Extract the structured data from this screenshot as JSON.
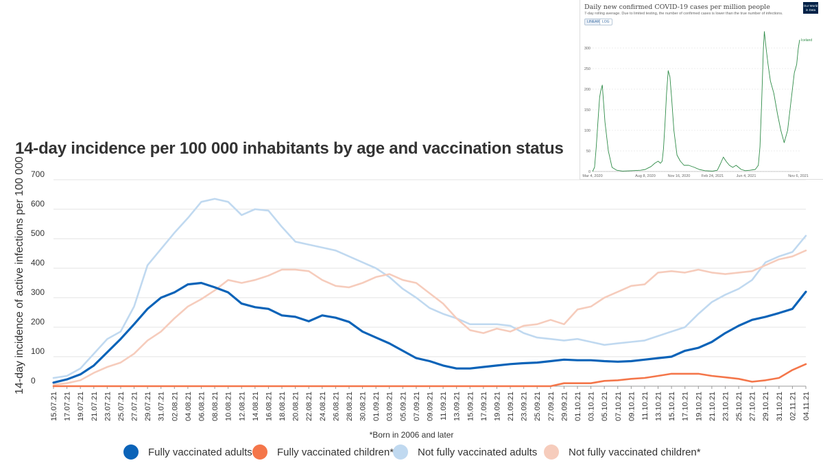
{
  "chart_data": [
    {
      "type": "line",
      "title": "14-day incidence per 100 000 inhabitants by age and vaccination status",
      "ylabel": "14-day incidence of active infections per 100 000",
      "xlabel": "",
      "ylim": [
        0,
        700
      ],
      "yticks": [
        0,
        100,
        200,
        300,
        400,
        500,
        600,
        700
      ],
      "grid": "horizontal",
      "legend_position": "bottom",
      "footnote": "*Born in 2006 and later",
      "x": [
        "15.07.21",
        "17.07.21",
        "19.07.21",
        "21.07.21",
        "23.07.21",
        "25.07.21",
        "27.07.21",
        "29.07.21",
        "31.07.21",
        "02.08.21",
        "04.08.21",
        "06.08.21",
        "08.08.21",
        "10.08.21",
        "12.08.21",
        "14.08.21",
        "16.08.21",
        "18.08.21",
        "20.08.21",
        "22.08.21",
        "24.08.21",
        "26.08.21",
        "28.08.21",
        "30.08.21",
        "01.09.21",
        "03.09.21",
        "05.09.21",
        "07.09.21",
        "09.09.21",
        "11.09.21",
        "13.09.21",
        "15.09.21",
        "17.09.21",
        "19.09.21",
        "21.09.21",
        "23.09.21",
        "25.09.21",
        "27.09.21",
        "29.09.21",
        "01.10.21",
        "03.10.21",
        "05.10.21",
        "07.10.21",
        "09.10.21",
        "11.10.21",
        "13.10.21",
        "15.10.21",
        "17.10.21",
        "19.10.21",
        "21.10.21",
        "23.10.21",
        "25.10.21",
        "27.10.21",
        "29.10.21",
        "31.10.21",
        "02.11.21",
        "04.11.21"
      ],
      "series": [
        {
          "name": "Fully vaccinated adults",
          "color": "#0b63b8",
          "values": [
            12,
            23,
            40,
            70,
            115,
            160,
            210,
            262,
            300,
            318,
            345,
            350,
            335,
            318,
            280,
            268,
            262,
            240,
            235,
            220,
            240,
            232,
            218,
            185,
            165,
            145,
            120,
            95,
            85,
            70,
            60,
            60,
            65,
            70,
            75,
            78,
            80,
            85,
            90,
            88,
            88,
            85,
            83,
            85,
            90,
            95,
            100,
            120,
            130,
            150,
            180,
            205,
            225,
            235,
            248,
            262,
            320
          ]
        },
        {
          "name": "Fully vaccinated children*",
          "color": "#f4764a",
          "values": [
            0,
            0,
            0,
            0,
            0,
            0,
            0,
            0,
            0,
            0,
            0,
            0,
            0,
            0,
            0,
            0,
            0,
            0,
            0,
            0,
            0,
            0,
            0,
            0,
            0,
            0,
            0,
            0,
            0,
            0,
            0,
            0,
            0,
            0,
            0,
            0,
            0,
            0,
            10,
            10,
            10,
            18,
            20,
            25,
            28,
            35,
            42,
            42,
            42,
            35,
            30,
            25,
            15,
            20,
            28,
            55,
            75
          ]
        },
        {
          "name": "Not fully vaccinated adults",
          "color": "#c0d9f0",
          "values": [
            28,
            35,
            60,
            110,
            160,
            185,
            270,
            410,
            465,
            520,
            570,
            625,
            635,
            625,
            580,
            600,
            595,
            540,
            490,
            480,
            470,
            460,
            440,
            420,
            400,
            370,
            330,
            300,
            265,
            245,
            230,
            210,
            210,
            210,
            205,
            180,
            165,
            160,
            155,
            160,
            150,
            140,
            145,
            150,
            155,
            170,
            185,
            200,
            245,
            285,
            310,
            330,
            360,
            420,
            440,
            455,
            510
          ]
        },
        {
          "name": "Not fully vaccinated children*",
          "color": "#f6ccbc",
          "values": [
            5,
            10,
            20,
            45,
            65,
            80,
            110,
            155,
            185,
            230,
            270,
            295,
            325,
            360,
            350,
            360,
            375,
            395,
            395,
            390,
            360,
            340,
            335,
            350,
            370,
            380,
            360,
            350,
            315,
            280,
            230,
            190,
            180,
            195,
            185,
            205,
            210,
            225,
            210,
            260,
            270,
            300,
            320,
            340,
            345,
            385,
            390,
            385,
            395,
            385,
            380,
            385,
            390,
            410,
            430,
            440,
            460
          ]
        }
      ]
    },
    {
      "type": "line",
      "title": "Daily new confirmed COVID-19 cases per million people",
      "subtitle": "7-day rolling average. Due to limited testing, the number of confirmed cases is lower than the true number of infections.",
      "ylim": [
        0,
        350
      ],
      "yticks": [
        0,
        50,
        100,
        150,
        200,
        250,
        300
      ],
      "xtick_labels": [
        "Mar 4, 2020",
        "Aug 8, 2020",
        "Nov 16, 2020",
        "Feb 24, 2021",
        "Jun 4, 2021",
        "Nov 6, 2021"
      ],
      "scale_buttons": [
        "LINEAR",
        "LOG"
      ],
      "logo": "Our World in Data",
      "series": [
        {
          "name": "Iceland",
          "color": "#2e8b47",
          "dates": [
            "2020-03-04",
            "2020-03-10",
            "2020-03-15",
            "2020-03-20",
            "2020-03-25",
            "2020-03-28",
            "2020-04-02",
            "2020-04-10",
            "2020-04-20",
            "2020-05-01",
            "2020-05-15",
            "2020-06-01",
            "2020-07-01",
            "2020-07-25",
            "2020-08-08",
            "2020-08-15",
            "2020-08-25",
            "2020-09-05",
            "2020-09-15",
            "2020-09-22",
            "2020-09-27",
            "2020-10-01",
            "2020-10-05",
            "2020-10-10",
            "2020-10-15",
            "2020-10-20",
            "2020-10-25",
            "2020-11-01",
            "2020-11-10",
            "2020-11-20",
            "2020-12-01",
            "2020-12-15",
            "2021-01-01",
            "2021-01-15",
            "2021-02-01",
            "2021-02-24",
            "2021-03-10",
            "2021-03-20",
            "2021-03-28",
            "2021-04-05",
            "2021-04-15",
            "2021-04-25",
            "2021-05-05",
            "2021-05-20",
            "2021-06-01",
            "2021-06-15",
            "2021-07-01",
            "2021-07-10",
            "2021-07-15",
            "2021-07-20",
            "2021-07-25",
            "2021-07-28",
            "2021-08-02",
            "2021-08-08",
            "2021-08-15",
            "2021-08-25",
            "2021-09-05",
            "2021-09-15",
            "2021-09-25",
            "2021-10-05",
            "2021-10-15",
            "2021-10-25",
            "2021-11-01",
            "2021-11-06",
            "2021-11-10"
          ],
          "values": [
            0,
            10,
            60,
            120,
            180,
            195,
            210,
            120,
            50,
            10,
            3,
            1,
            2,
            3,
            5,
            8,
            12,
            20,
            25,
            20,
            25,
            55,
            110,
            190,
            245,
            230,
            180,
            100,
            40,
            25,
            15,
            15,
            10,
            5,
            2,
            1,
            3,
            20,
            35,
            25,
            15,
            10,
            15,
            5,
            2,
            3,
            5,
            15,
            60,
            170,
            300,
            340,
            300,
            260,
            220,
            190,
            140,
            100,
            70,
            100,
            170,
            240,
            260,
            300,
            320
          ]
        }
      ]
    }
  ],
  "legend": [
    {
      "label": "Fully vaccinated adults",
      "color": "#0b63b8"
    },
    {
      "label": "Fully vaccinated children*",
      "color": "#f4764a"
    },
    {
      "label": "Not fully vaccinated adults",
      "color": "#c0d9f0"
    },
    {
      "label": "Not fully vaccinated children*",
      "color": "#f6ccbc"
    }
  ],
  "inset_ui": {
    "linear_label": "LINEAR",
    "log_label": "LOG",
    "logo_text": "Our World in Data"
  }
}
